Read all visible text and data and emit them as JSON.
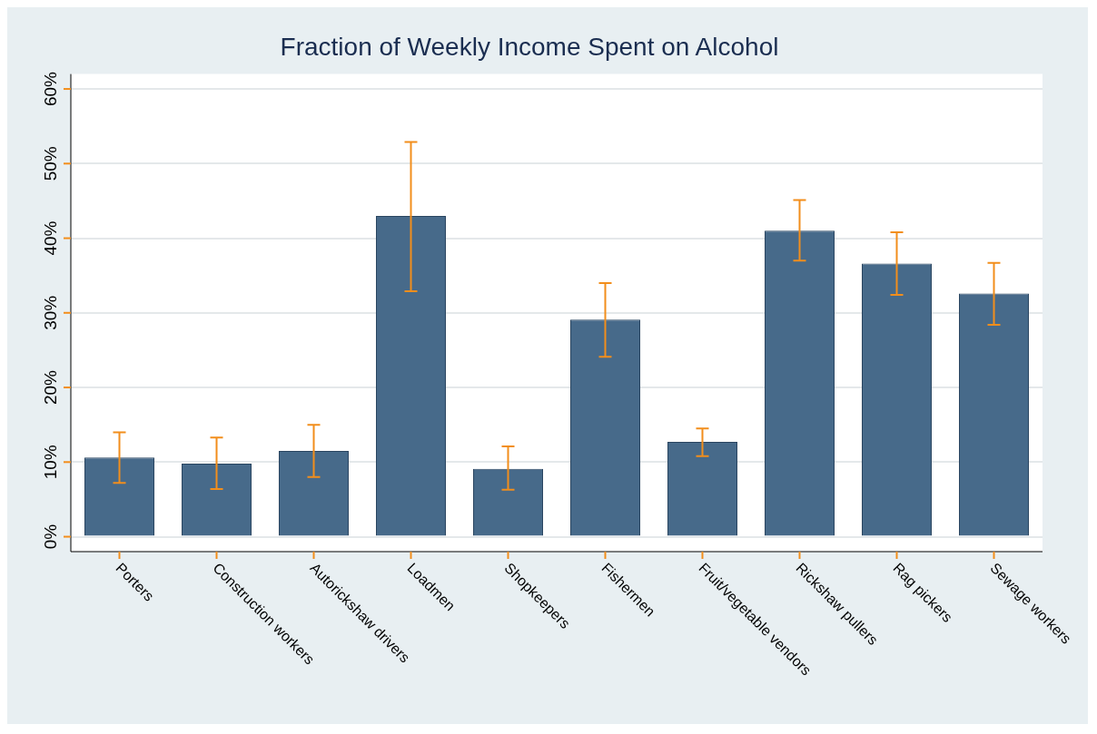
{
  "chart_data": {
    "type": "bar",
    "title": "Fraction of Weekly Income Spent on Alcohol",
    "categories": [
      "Porters",
      "Construction workers",
      "Autorickshaw drivers",
      "Loadmen",
      "Shopkeepers",
      "Fishermen",
      "Fruit/vegetable vendors",
      "Rickshaw pullers",
      "Rag pickers",
      "Sewage workers"
    ],
    "values": [
      10.6,
      9.8,
      11.5,
      43.0,
      9.1,
      29.1,
      12.7,
      41.0,
      36.6,
      32.6
    ],
    "errors": [
      [
        7.2,
        14.0
      ],
      [
        6.4,
        13.3
      ],
      [
        8.0,
        15.0
      ],
      [
        32.9,
        52.9
      ],
      [
        6.3,
        12.1
      ],
      [
        24.1,
        34.0
      ],
      [
        10.8,
        14.5
      ],
      [
        37.0,
        45.1
      ],
      [
        32.4,
        40.8
      ],
      [
        28.4,
        36.7
      ]
    ],
    "color": "#476a8a",
    "ylim": [
      -2,
      62
    ],
    "yticks": [
      {
        "value": 0,
        "label": "0%"
      },
      {
        "value": 10,
        "label": "10%"
      },
      {
        "value": 20,
        "label": "20%"
      },
      {
        "value": 30,
        "label": "30%"
      },
      {
        "value": 40,
        "label": "40%"
      },
      {
        "value": 50,
        "label": "50%"
      },
      {
        "value": 60,
        "label": "60%"
      }
    ],
    "grid": "y",
    "legend": false
  }
}
